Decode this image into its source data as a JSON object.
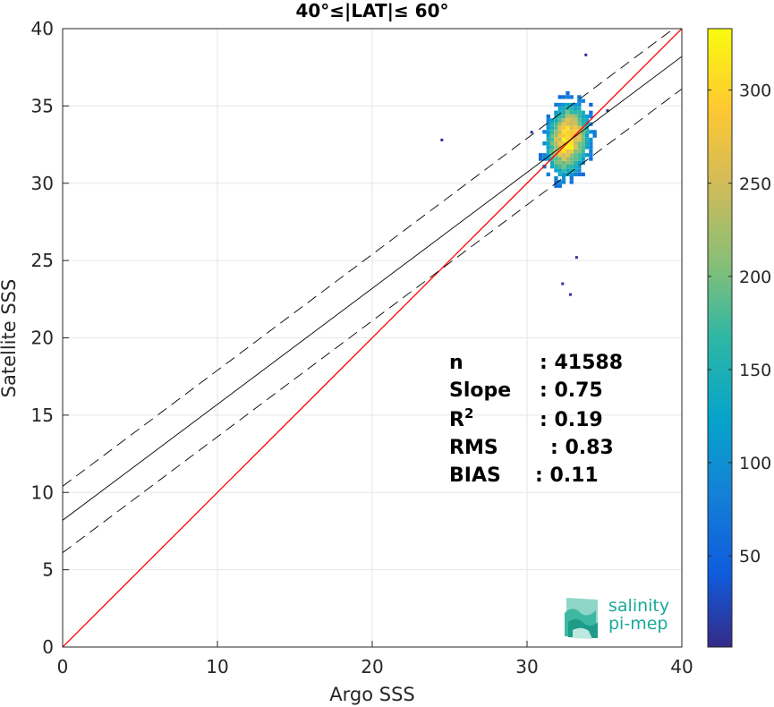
{
  "chart_data": {
    "type": "scatter",
    "title": "40°≤|LAT|≤ 60°",
    "xlabel": "Argo SSS",
    "ylabel": "Satellite SSS",
    "xlim": [
      0,
      40
    ],
    "ylim": [
      0,
      40
    ],
    "xticks": [
      "0",
      "10",
      "20",
      "30",
      "40"
    ],
    "yticks": [
      "0",
      "5",
      "10",
      "15",
      "20",
      "25",
      "30",
      "35",
      "40"
    ],
    "grid": true,
    "density_cluster": {
      "center": [
        32.5,
        32.7
      ],
      "spread_x": 0.9,
      "spread_y": 1.5,
      "max_count": 330
    },
    "outliers": [
      [
        24.5,
        32.8
      ],
      [
        33.2,
        25.2
      ],
      [
        32.8,
        22.8
      ],
      [
        32.3,
        23.5
      ],
      [
        33.8,
        38.3
      ],
      [
        30.3,
        33.3
      ],
      [
        35.2,
        34.7
      ]
    ],
    "lines": [
      {
        "name": "1:1",
        "color": "#ff0000",
        "slope": 1.0,
        "intercept": 0.0,
        "style": "solid"
      },
      {
        "name": "fit",
        "color": "#000000",
        "slope": 0.75,
        "intercept": 8.2,
        "style": "solid"
      },
      {
        "name": "fit+",
        "color": "#000000",
        "slope": 0.75,
        "intercept": 10.4,
        "style": "dashed"
      },
      {
        "name": "fit-",
        "color": "#000000",
        "slope": 0.75,
        "intercept": 6.1,
        "style": "dashed"
      }
    ],
    "stats": [
      {
        "label": "n",
        "value": ": 41588"
      },
      {
        "label": "Slope",
        "value": ": 0.75"
      },
      {
        "label": "R",
        "sup": "2",
        "value": ": 0.19"
      },
      {
        "label": "RMS",
        "value": ": 0.83"
      },
      {
        "label": "BIAS",
        "value": ": 0.11"
      }
    ],
    "colorbar": {
      "ticks": [
        "50",
        "100",
        "150",
        "200",
        "250",
        "300"
      ],
      "range": [
        1,
        333
      ],
      "colormap": "parula"
    }
  },
  "logo": {
    "line1": "salinity",
    "line2": "pi-mep"
  }
}
